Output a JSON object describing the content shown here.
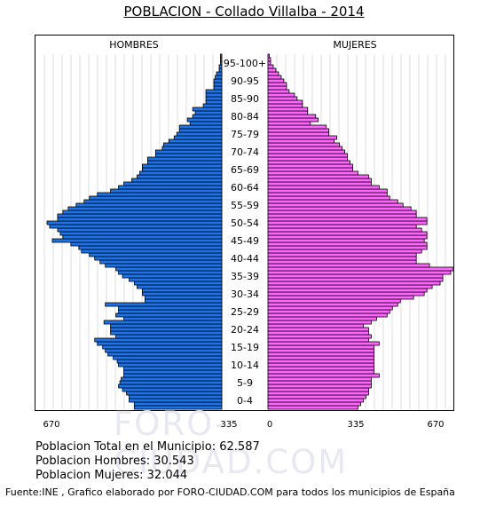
{
  "title": "POBLACION - Collado Villalba - 2014",
  "watermark": "FORO-CIUDAD.COM",
  "stats": {
    "total": "Poblacion Total en el Municipio: 62.587",
    "hombres": "Poblacion Hombres: 30.543",
    "mujeres": "Poblacion Mujeres: 32.044"
  },
  "source": "Fuente:INE , Grafico elaborado por FORO-CIUDAD.COM para todos los municipios de España",
  "colors": {
    "hombres": "#1e73e8",
    "mujeres": "#ff66ff",
    "grid": "#dddddd"
  },
  "chart_data": {
    "type": "bar",
    "orientation": "population-pyramid",
    "xlim": [
      0,
      670
    ],
    "x_ticks": [
      "670",
      "335",
      "0",
      "335",
      "670"
    ],
    "age_labels": [
      "0-4",
      "5-9",
      "10-14",
      "15-19",
      "20-24",
      "25-29",
      "30-34",
      "35-39",
      "40-44",
      "45-49",
      "50-54",
      "55-59",
      "60-64",
      "65-69",
      "70-74",
      "75-79",
      "80-84",
      "85-90",
      "90-95",
      "95-100+"
    ],
    "series": [
      {
        "name": "HOMBRES",
        "values": [
          330,
          330,
          350,
          350,
          360,
          375,
          390,
          385,
          380,
          370,
          370,
          370,
          390,
          395,
          410,
          430,
          440,
          450,
          470,
          480,
          400,
          420,
          420,
          420,
          445,
          370,
          400,
          390,
          390,
          440,
          290,
          290,
          300,
          300,
          320,
          330,
          350,
          375,
          390,
          400,
          440,
          460,
          480,
          500,
          530,
          540,
          570,
          640,
          600,
          610,
          620,
          650,
          660,
          620,
          620,
          600,
          580,
          550,
          520,
          500,
          470,
          420,
          390,
          370,
          340,
          320,
          310,
          300,
          300,
          280,
          280,
          250,
          250,
          225,
          220,
          200,
          180,
          170,
          160,
          160,
          120,
          130,
          110,
          100,
          110,
          70,
          60,
          60,
          60,
          60,
          30,
          30,
          30,
          25,
          20,
          10,
          10,
          5,
          5,
          5
        ]
      },
      {
        "name": "MUJERES",
        "values": [
          340,
          350,
          360,
          370,
          380,
          380,
          390,
          390,
          390,
          420,
          400,
          400,
          400,
          400,
          400,
          400,
          400,
          400,
          420,
          380,
          390,
          380,
          380,
          360,
          390,
          410,
          450,
          460,
          470,
          490,
          500,
          550,
          590,
          600,
          620,
          650,
          660,
          660,
          690,
          700,
          610,
          560,
          560,
          560,
          580,
          600,
          600,
          590,
          600,
          600,
          580,
          560,
          600,
          600,
          560,
          560,
          540,
          510,
          490,
          460,
          450,
          450,
          420,
          390,
          390,
          380,
          340,
          320,
          320,
          310,
          300,
          300,
          290,
          280,
          270,
          250,
          260,
          230,
          230,
          220,
          160,
          190,
          180,
          150,
          150,
          130,
          130,
          110,
          100,
          80,
          70,
          70,
          60,
          50,
          40,
          30,
          20,
          10,
          10,
          5
        ]
      }
    ]
  }
}
